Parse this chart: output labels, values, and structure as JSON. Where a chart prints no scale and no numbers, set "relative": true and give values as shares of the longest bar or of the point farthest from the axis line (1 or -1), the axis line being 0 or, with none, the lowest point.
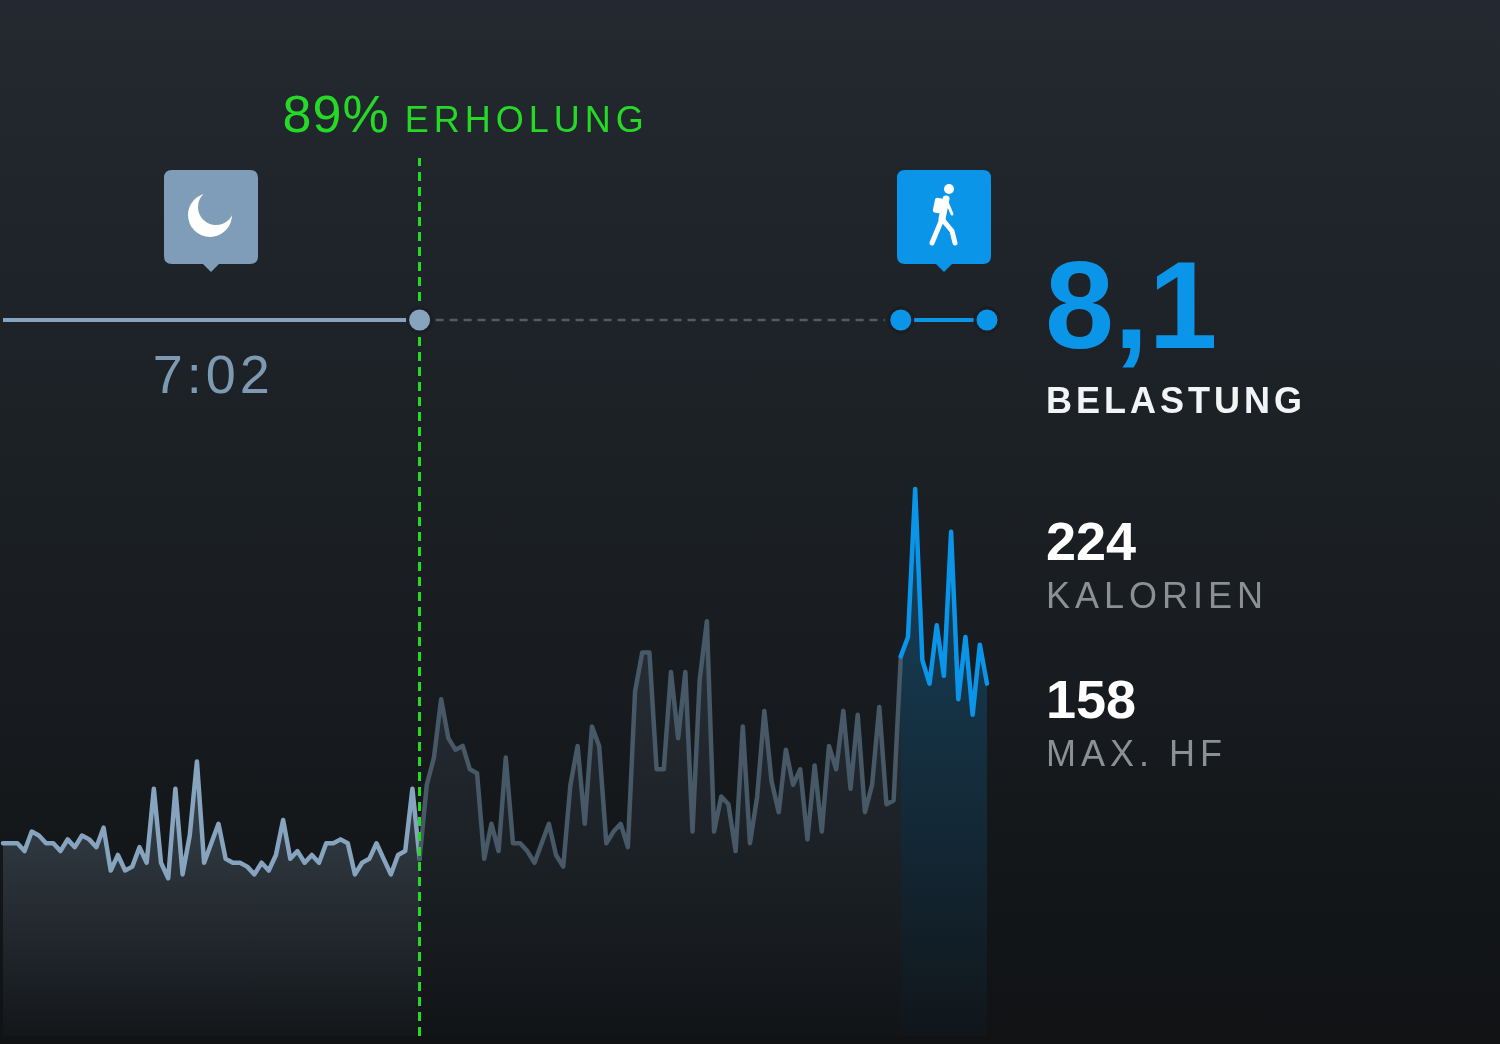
{
  "chart_data": {
    "type": "area",
    "relative": true,
    "categories": [
      null,
      null,
      null,
      null,
      null,
      null,
      null,
      null,
      null,
      null,
      null,
      null,
      null,
      null,
      null,
      null,
      null,
      null,
      null,
      null,
      null,
      null,
      null,
      null,
      null,
      null,
      null,
      null,
      null,
      null,
      null,
      null,
      null,
      null,
      null,
      null,
      null,
      null,
      null,
      null,
      null,
      null,
      null,
      null,
      null,
      null,
      null,
      null,
      null,
      null,
      null,
      null,
      null,
      null,
      null,
      null,
      null,
      null,
      null,
      null,
      null,
      null,
      null,
      null,
      null,
      null,
      null,
      null,
      null,
      null,
      null,
      null,
      null,
      null,
      null,
      null,
      null,
      null,
      null,
      null,
      null,
      null,
      null,
      null,
      null,
      null,
      null,
      null,
      null,
      null,
      null,
      null,
      null,
      null,
      null,
      null,
      null,
      null,
      null,
      null,
      null,
      null,
      null,
      null,
      null,
      null,
      null,
      null,
      null,
      null,
      null,
      null,
      null,
      null,
      null,
      null,
      null,
      null,
      null,
      null,
      null,
      null,
      null,
      null,
      null,
      null,
      null,
      null,
      null,
      null,
      null,
      null,
      null,
      null,
      null,
      null,
      null,
      null
    ],
    "series": [
      {
        "color": "#87a4bf",
        "values": [
          0.09,
          0.09,
          0.09,
          0.07,
          0.12,
          0.11,
          0.09,
          0.09,
          0.07,
          0.1,
          0.08,
          0.11,
          0.1,
          0.08,
          0.13,
          0.02,
          0.06,
          0.02,
          0.03,
          0.08,
          0.04,
          0.23,
          0.04,
          0,
          0.23,
          0.01,
          0.11,
          0.3,
          0.04,
          0.09,
          0.14,
          0.05,
          0.04,
          0.04,
          0.03,
          0.01,
          0.04,
          0.02,
          0.06,
          0.15,
          0.05,
          0.07,
          0.04,
          0.06,
          0.04,
          0.09,
          0.09,
          0.1,
          0.09,
          0.01,
          0.04,
          0.05,
          0.09,
          0.05,
          0.01,
          0.06,
          0.07,
          0.23,
          0.05,
          null,
          null,
          null,
          null,
          null,
          null,
          null,
          null,
          null,
          null,
          null,
          null,
          null,
          null,
          null,
          null,
          null,
          null,
          null,
          null,
          null,
          null,
          null,
          null,
          null,
          null,
          null,
          null,
          null,
          null,
          null,
          null,
          null,
          null,
          null,
          null,
          null,
          null,
          null,
          null,
          null,
          null,
          null,
          null,
          null,
          null,
          null,
          null,
          null,
          null,
          null,
          null,
          null,
          null,
          null,
          null,
          null,
          null,
          null,
          null,
          null,
          null,
          null,
          null,
          null,
          null,
          null,
          null,
          null,
          null,
          null,
          null,
          null,
          null,
          null,
          null,
          null,
          null,
          null
        ]
      },
      {
        "color": "#475867",
        "values": [
          null,
          null,
          null,
          null,
          null,
          null,
          null,
          null,
          null,
          null,
          null,
          null,
          null,
          null,
          null,
          null,
          null,
          null,
          null,
          null,
          null,
          null,
          null,
          null,
          null,
          null,
          null,
          null,
          null,
          null,
          null,
          null,
          null,
          null,
          null,
          null,
          null,
          null,
          null,
          null,
          null,
          null,
          null,
          null,
          null,
          null,
          null,
          null,
          null,
          null,
          null,
          null,
          null,
          null,
          null,
          null,
          null,
          null,
          0.05,
          0.24,
          0.31,
          0.46,
          0.36,
          0.33,
          0.34,
          0.28,
          0.27,
          0.05,
          0.14,
          0.07,
          0.31,
          0.09,
          0.09,
          0.07,
          0.04,
          0.09,
          0.14,
          0.06,
          0.03,
          0.24,
          0.34,
          0.14,
          0.39,
          0.34,
          0.09,
          0.12,
          0.14,
          0.08,
          0.48,
          0.58,
          0.58,
          0.28,
          0.28,
          0.53,
          0.36,
          0.53,
          0.12,
          0.51,
          0.66,
          0.12,
          0.21,
          0.19,
          0.07,
          0.39,
          0.09,
          0.21,
          0.43,
          0.25,
          0.17,
          0.33,
          0.24,
          0.28,
          0.1,
          0.29,
          0.12,
          0.34,
          0.28,
          0.43,
          0.23,
          0.42,
          0.17,
          0.24,
          0.44,
          0.19,
          0.2,
          0.57,
          null,
          null,
          null,
          null,
          null,
          null,
          null,
          null,
          null,
          null,
          null,
          null
        ]
      },
      {
        "color": "#0b95e8",
        "values": [
          null,
          null,
          null,
          null,
          null,
          null,
          null,
          null,
          null,
          null,
          null,
          null,
          null,
          null,
          null,
          null,
          null,
          null,
          null,
          null,
          null,
          null,
          null,
          null,
          null,
          null,
          null,
          null,
          null,
          null,
          null,
          null,
          null,
          null,
          null,
          null,
          null,
          null,
          null,
          null,
          null,
          null,
          null,
          null,
          null,
          null,
          null,
          null,
          null,
          null,
          null,
          null,
          null,
          null,
          null,
          null,
          null,
          null,
          null,
          null,
          null,
          null,
          null,
          null,
          null,
          null,
          null,
          null,
          null,
          null,
          null,
          null,
          null,
          null,
          null,
          null,
          null,
          null,
          null,
          null,
          null,
          null,
          null,
          null,
          null,
          null,
          null,
          null,
          null,
          null,
          null,
          null,
          null,
          null,
          null,
          null,
          null,
          null,
          null,
          null,
          null,
          null,
          null,
          null,
          null,
          null,
          null,
          null,
          null,
          null,
          null,
          null,
          null,
          null,
          null,
          null,
          null,
          null,
          null,
          null,
          null,
          null,
          null,
          null,
          null,
          0.57,
          0.62,
          1,
          0.56,
          0.5,
          0.65,
          0.52,
          0.89,
          0.46,
          0.62,
          0.42,
          0.6,
          0.5
        ]
      }
    ],
    "annotations": [
      "89% ERHOLUNG",
      "7:02",
      "8,1",
      "BELASTUNG",
      "224",
      "KALORIEN",
      "158",
      "MAX. HF"
    ]
  }
}
